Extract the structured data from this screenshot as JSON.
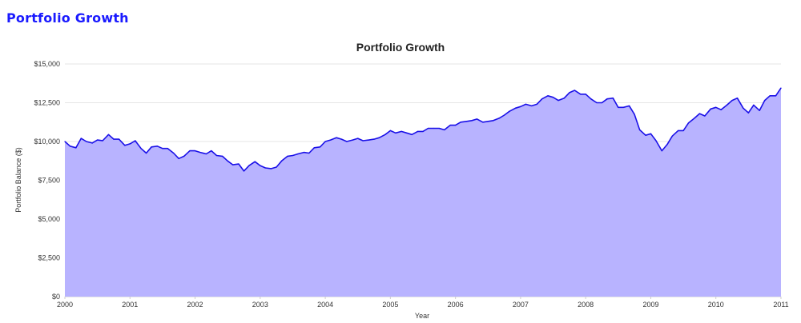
{
  "page": {
    "heading": "Portfolio Growth"
  },
  "colors": {
    "heading": "#1a1aff",
    "line": "#1a10e8",
    "fill": "#b8b3ff"
  },
  "chart_data": {
    "type": "area",
    "title": "Portfolio Growth",
    "xlabel": "Year",
    "ylabel": "Portfolio Balance ($)",
    "xlim": [
      2000,
      2011
    ],
    "ylim": [
      0,
      15000
    ],
    "y_ticks": [
      {
        "value": 0,
        "label": "$0"
      },
      {
        "value": 2500,
        "label": "$2,500"
      },
      {
        "value": 5000,
        "label": "$5,000"
      },
      {
        "value": 7500,
        "label": "$7,500"
      },
      {
        "value": 10000,
        "label": "$10,000"
      },
      {
        "value": 12500,
        "label": "$12,500"
      },
      {
        "value": 15000,
        "label": "$15,000"
      }
    ],
    "x_ticks": [
      {
        "value": 2000,
        "label": "2000"
      },
      {
        "value": 2001,
        "label": "2001"
      },
      {
        "value": 2002,
        "label": "2002"
      },
      {
        "value": 2003,
        "label": "2003"
      },
      {
        "value": 2004,
        "label": "2004"
      },
      {
        "value": 2005,
        "label": "2005"
      },
      {
        "value": 2006,
        "label": "2006"
      },
      {
        "value": 2007,
        "label": "2007"
      },
      {
        "value": 2008,
        "label": "2008"
      },
      {
        "value": 2009,
        "label": "2009"
      },
      {
        "value": 2010,
        "label": "2010"
      },
      {
        "value": 2011,
        "label": "2011"
      }
    ],
    "grid": true,
    "legend": "none",
    "series": [
      {
        "x": [
          2000.0,
          2000.08,
          2000.17,
          2000.25,
          2000.33,
          2000.42,
          2000.5,
          2000.58,
          2000.67,
          2000.75,
          2000.83,
          2000.92,
          2001.0,
          2001.08,
          2001.17,
          2001.25,
          2001.33,
          2001.42,
          2001.5,
          2001.58,
          2001.67,
          2001.75,
          2001.83,
          2001.92,
          2002.0,
          2002.08,
          2002.17,
          2002.25,
          2002.33,
          2002.42,
          2002.5,
          2002.58,
          2002.67,
          2002.75,
          2002.83,
          2002.92,
          2003.0,
          2003.08,
          2003.17,
          2003.25,
          2003.33,
          2003.42,
          2003.5,
          2003.58,
          2003.67,
          2003.75,
          2003.83,
          2003.92,
          2004.0,
          2004.08,
          2004.17,
          2004.25,
          2004.33,
          2004.42,
          2004.5,
          2004.58,
          2004.67,
          2004.75,
          2004.83,
          2004.92,
          2005.0,
          2005.08,
          2005.17,
          2005.25,
          2005.33,
          2005.42,
          2005.5,
          2005.58,
          2005.67,
          2005.75,
          2005.83,
          2005.92,
          2006.0,
          2006.08,
          2006.17,
          2006.25,
          2006.33,
          2006.42,
          2006.5,
          2006.58,
          2006.67,
          2006.75,
          2006.83,
          2006.92,
          2007.0,
          2007.08,
          2007.17,
          2007.25,
          2007.33,
          2007.42,
          2007.5,
          2007.58,
          2007.67,
          2007.75,
          2007.83,
          2007.92,
          2008.0,
          2008.08,
          2008.17,
          2008.25,
          2008.33,
          2008.42,
          2008.5,
          2008.58,
          2008.67,
          2008.75,
          2008.83,
          2008.92,
          2009.0,
          2009.08,
          2009.17,
          2009.25,
          2009.33,
          2009.42,
          2009.5,
          2009.58,
          2009.67,
          2009.75,
          2009.83,
          2009.92,
          2010.0,
          2010.08,
          2010.17,
          2010.25,
          2010.33,
          2010.42,
          2010.5,
          2010.58,
          2010.67,
          2010.75,
          2010.83,
          2010.92,
          2011.0
        ],
        "values": [
          10000,
          9700,
          9600,
          10200,
          10000,
          9900,
          10100,
          10050,
          10450,
          10150,
          10150,
          9750,
          9850,
          10050,
          9550,
          9250,
          9650,
          9700,
          9550,
          9550,
          9250,
          8900,
          9050,
          9400,
          9400,
          9300,
          9200,
          9400,
          9100,
          9050,
          8750,
          8500,
          8550,
          8100,
          8450,
          8700,
          8450,
          8300,
          8250,
          8350,
          8750,
          9050,
          9100,
          9200,
          9300,
          9250,
          9600,
          9650,
          10000,
          10100,
          10250,
          10150,
          10000,
          10100,
          10200,
          10050,
          10100,
          10150,
          10250,
          10450,
          10700,
          10550,
          10650,
          10550,
          10450,
          10650,
          10650,
          10850,
          10850,
          10850,
          10750,
          11050,
          11050,
          11250,
          11300,
          11350,
          11450,
          11250,
          11300,
          11350,
          11500,
          11700,
          11950,
          12150,
          12250,
          12400,
          12300,
          12400,
          12750,
          12950,
          12850,
          12650,
          12800,
          13150,
          13300,
          13050,
          13050,
          12750,
          12500,
          12500,
          12750,
          12800,
          12200,
          12200,
          12300,
          11750,
          10750,
          10400,
          10500,
          10050,
          9400,
          9800,
          10350,
          10700,
          10700,
          11200,
          11500,
          11800,
          11650,
          12100,
          12200,
          12050,
          12350,
          12650,
          12800,
          12150,
          11850,
          12350,
          12000,
          12650,
          12950,
          12950,
          13450
        ]
      }
    ]
  }
}
